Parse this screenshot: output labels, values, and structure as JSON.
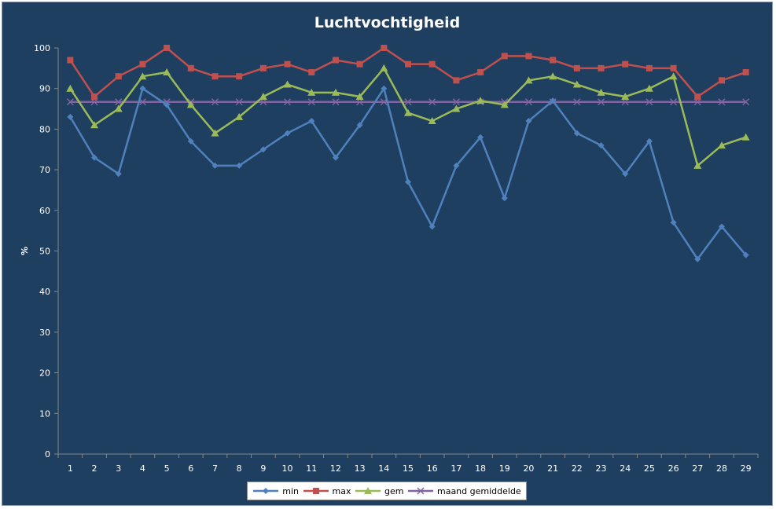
{
  "chart_data": {
    "type": "line",
    "title": "Luchtvochtigheid",
    "ylabel": "%",
    "xlabel": "",
    "ylim": [
      0,
      100
    ],
    "yticks": [
      0,
      10,
      20,
      30,
      40,
      50,
      60,
      70,
      80,
      90,
      100
    ],
    "categories": [
      "1",
      "2",
      "3",
      "4",
      "5",
      "6",
      "7",
      "8",
      "9",
      "10",
      "11",
      "12",
      "13",
      "14",
      "15",
      "16",
      "17",
      "18",
      "19",
      "20",
      "21",
      "22",
      "23",
      "24",
      "25",
      "26",
      "27",
      "28",
      "29"
    ],
    "grid": false,
    "legend_position": "bottom",
    "series": [
      {
        "name": "min",
        "color": "#4f81bd",
        "marker": "diamond",
        "values": [
          83,
          73,
          69,
          90,
          86,
          77,
          71,
          71,
          75,
          79,
          82,
          73,
          81,
          90,
          67,
          56,
          71,
          78,
          63,
          82,
          87,
          79,
          76,
          69,
          77,
          57,
          48,
          56,
          49
        ]
      },
      {
        "name": "max",
        "color": "#c0504d",
        "marker": "square",
        "values": [
          97,
          88,
          93,
          96,
          100,
          95,
          93,
          93,
          95,
          96,
          94,
          97,
          96,
          100,
          96,
          96,
          92,
          94,
          98,
          98,
          97,
          95,
          95,
          96,
          95,
          95,
          88,
          92,
          94
        ]
      },
      {
        "name": "gem",
        "color": "#9bbb59",
        "marker": "triangle",
        "values": [
          90,
          81,
          85,
          93,
          94,
          86,
          79,
          83,
          88,
          91,
          89,
          89,
          88,
          95,
          84,
          82,
          85,
          87,
          86,
          92,
          93,
          91,
          89,
          88,
          90,
          93,
          71,
          76,
          78
        ]
      },
      {
        "name": "maand gemiddelde",
        "color": "#8064a2",
        "marker": "x",
        "values": [
          86.7,
          86.7,
          86.7,
          86.7,
          86.7,
          86.7,
          86.7,
          86.7,
          86.7,
          86.7,
          86.7,
          86.7,
          86.7,
          86.7,
          86.7,
          86.7,
          86.7,
          86.7,
          86.7,
          86.7,
          86.7,
          86.7,
          86.7,
          86.7,
          86.7,
          86.7,
          86.7,
          86.7,
          86.7
        ]
      }
    ]
  }
}
